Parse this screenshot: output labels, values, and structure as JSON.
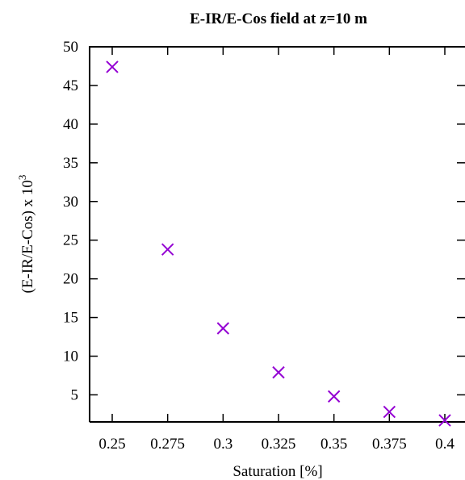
{
  "chart_data": {
    "type": "scatter",
    "title": "E-IR/E-Cos field at z=10 m",
    "xlabel": "Saturation [%]",
    "ylabel": "(E-IR/E-Cos) x 10",
    "ylabel_superscript": "3",
    "xlim": [
      0.24,
      0.4
    ],
    "ylim": [
      1.5,
      50
    ],
    "x_ticks": [
      0.25,
      0.275,
      0.3,
      0.325,
      0.35,
      0.375,
      0.4
    ],
    "x_tick_labels": [
      "0.25",
      "0.275",
      "0.3",
      "0.325",
      "0.35",
      "0.375",
      "0.4"
    ],
    "y_ticks": [
      5,
      10,
      15,
      20,
      25,
      30,
      35,
      40,
      45,
      50
    ],
    "y_tick_labels": [
      "5",
      "10",
      "15",
      "20",
      "25",
      "30",
      "35",
      "40",
      "45",
      "50"
    ],
    "grid": false,
    "marker": "x",
    "color": "#9400d3",
    "points": [
      {
        "x": 0.25,
        "y": 47.4
      },
      {
        "x": 0.275,
        "y": 23.8
      },
      {
        "x": 0.3,
        "y": 13.6
      },
      {
        "x": 0.325,
        "y": 7.9
      },
      {
        "x": 0.35,
        "y": 4.8
      },
      {
        "x": 0.375,
        "y": 2.8
      },
      {
        "x": 0.4,
        "y": 1.7
      }
    ]
  }
}
